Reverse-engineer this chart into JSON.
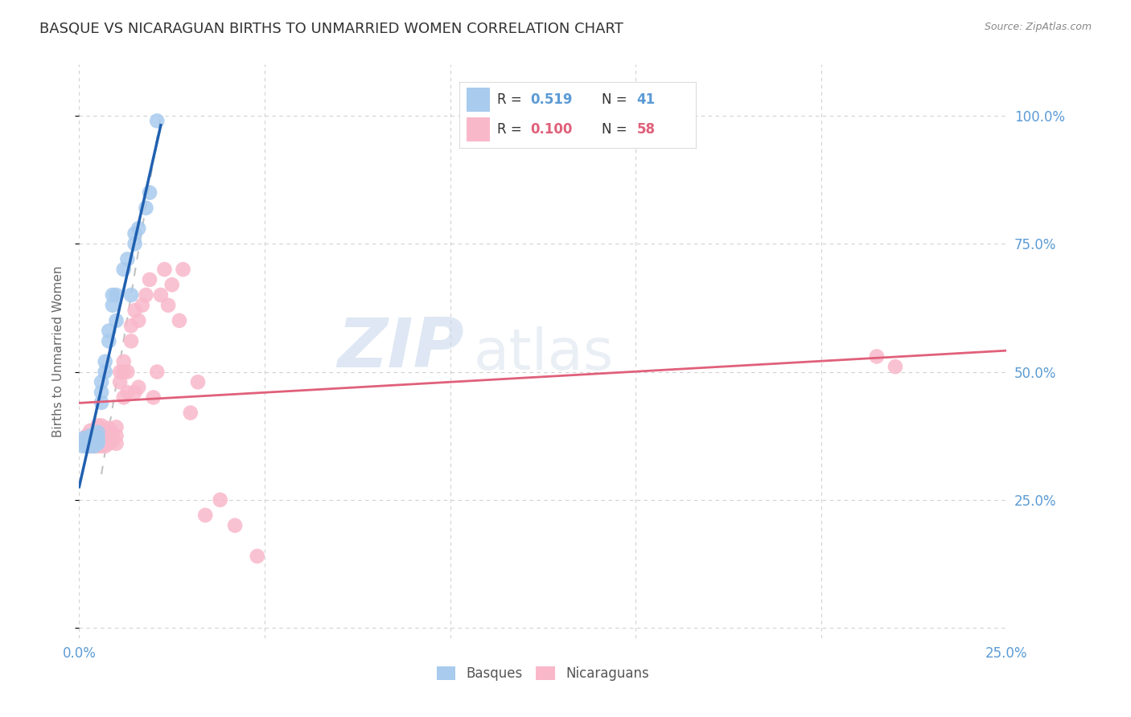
{
  "title": "BASQUE VS NICARAGUAN BIRTHS TO UNMARRIED WOMEN CORRELATION CHART",
  "source": "Source: ZipAtlas.com",
  "ylabel": "Births to Unmarried Women",
  "xlim": [
    0.0,
    0.25
  ],
  "ylim": [
    -0.02,
    1.1
  ],
  "basque_color": "#A8CBEE",
  "nicaraguan_color": "#F9B8CA",
  "basque_line_color": "#2060B0",
  "nicaraguan_line_color": "#E0607A",
  "tick_color": "#5B9BD5",
  "title_color": "#333333",
  "watermark_zip": "ZIP",
  "watermark_atlas": "atlas",
  "background_color": "#ffffff",
  "basque_x": [
    0.001,
    0.001,
    0.001,
    0.002,
    0.002,
    0.002,
    0.002,
    0.003,
    0.003,
    0.003,
    0.003,
    0.003,
    0.004,
    0.004,
    0.004,
    0.004,
    0.004,
    0.005,
    0.005,
    0.005,
    0.005,
    0.006,
    0.006,
    0.006,
    0.007,
    0.007,
    0.008,
    0.008,
    0.009,
    0.009,
    0.01,
    0.01,
    0.012,
    0.013,
    0.014,
    0.015,
    0.015,
    0.016,
    0.018,
    0.019,
    0.021
  ],
  "basque_y": [
    0.355,
    0.36,
    0.37,
    0.355,
    0.36,
    0.365,
    0.37,
    0.355,
    0.358,
    0.362,
    0.365,
    0.375,
    0.355,
    0.362,
    0.365,
    0.37,
    0.378,
    0.36,
    0.365,
    0.372,
    0.382,
    0.44,
    0.46,
    0.48,
    0.5,
    0.52,
    0.56,
    0.58,
    0.63,
    0.65,
    0.6,
    0.65,
    0.7,
    0.72,
    0.65,
    0.75,
    0.77,
    0.78,
    0.82,
    0.85,
    0.99
  ],
  "nic_x": [
    0.002,
    0.002,
    0.003,
    0.003,
    0.003,
    0.004,
    0.004,
    0.005,
    0.005,
    0.005,
    0.005,
    0.006,
    0.006,
    0.006,
    0.006,
    0.007,
    0.007,
    0.007,
    0.008,
    0.008,
    0.008,
    0.009,
    0.009,
    0.01,
    0.01,
    0.01,
    0.011,
    0.011,
    0.012,
    0.012,
    0.012,
    0.013,
    0.013,
    0.014,
    0.014,
    0.015,
    0.015,
    0.016,
    0.016,
    0.017,
    0.018,
    0.019,
    0.02,
    0.021,
    0.022,
    0.023,
    0.024,
    0.025,
    0.027,
    0.028,
    0.03,
    0.032,
    0.034,
    0.038,
    0.042,
    0.048,
    0.215,
    0.22
  ],
  "nic_y": [
    0.355,
    0.375,
    0.355,
    0.37,
    0.385,
    0.355,
    0.37,
    0.355,
    0.368,
    0.375,
    0.395,
    0.355,
    0.368,
    0.375,
    0.395,
    0.355,
    0.37,
    0.385,
    0.36,
    0.372,
    0.39,
    0.365,
    0.38,
    0.36,
    0.375,
    0.392,
    0.48,
    0.5,
    0.45,
    0.5,
    0.52,
    0.46,
    0.5,
    0.56,
    0.59,
    0.46,
    0.62,
    0.47,
    0.6,
    0.63,
    0.65,
    0.68,
    0.45,
    0.5,
    0.65,
    0.7,
    0.63,
    0.67,
    0.6,
    0.7,
    0.42,
    0.48,
    0.22,
    0.25,
    0.2,
    0.14,
    0.53,
    0.51
  ]
}
